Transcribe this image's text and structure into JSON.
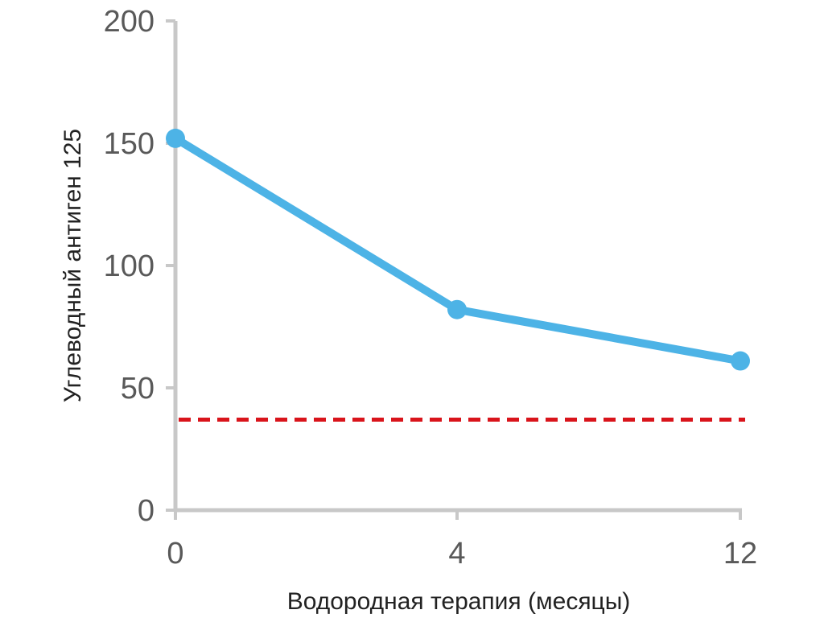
{
  "chart_data": {
    "type": "line",
    "xlabel": "Водородная терапия (месяцы)",
    "ylabel": "Углеводный антиген 125",
    "categories": [
      "0",
      "4",
      "12"
    ],
    "x_tick_labels": [
      "0",
      "4",
      "12"
    ],
    "y_ticks": [
      0,
      50,
      100,
      150,
      200
    ],
    "y_tick_labels": [
      "0",
      "50",
      "100",
      "150",
      "200"
    ],
    "ylim": [
      0,
      200
    ],
    "series": [
      {
        "values": [
          152,
          82,
          61
        ],
        "color": "#4db3e6"
      }
    ],
    "reference_line": {
      "value": 37,
      "color": "#d9141b",
      "style": "dashed"
    },
    "grid": false,
    "axis_color": "#c8c8c8"
  }
}
